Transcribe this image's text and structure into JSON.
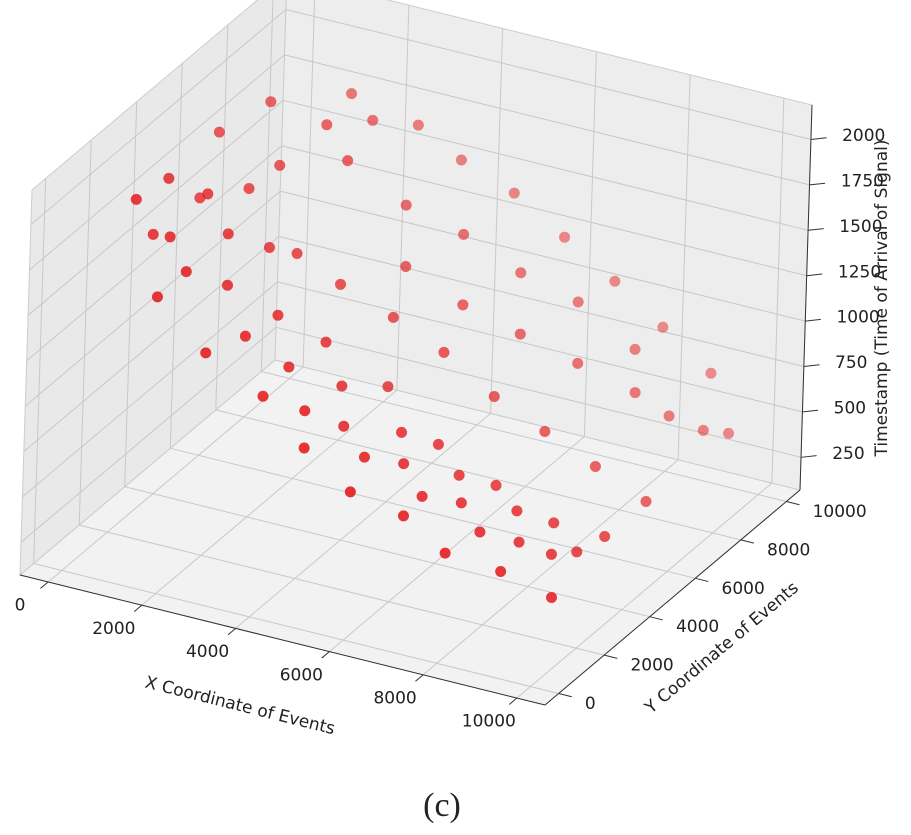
{
  "chart_data": {
    "type": "scatter3d",
    "xlabel": "X Coordinate of Events",
    "ylabel": "Y Coordinate of Events",
    "zlabel": "Timestamp (Time of Arrival of Signal)",
    "caption": "(c)",
    "color": "#e41a1c",
    "xlim": [
      -600,
      10600
    ],
    "ylim": [
      -600,
      10600
    ],
    "zlim": [
      70,
      2190
    ],
    "xticks": [
      0,
      2000,
      4000,
      6000,
      8000,
      10000
    ],
    "yticks": [
      0,
      2000,
      4000,
      6000,
      8000,
      10000
    ],
    "zticks": [
      250,
      500,
      750,
      1000,
      1250,
      1500,
      1750,
      2000
    ],
    "grid": true,
    "x": [
      300,
      600,
      900,
      1200,
      400,
      1500,
      1800,
      2100,
      800,
      2400,
      1000,
      2700,
      3000,
      1600,
      2000,
      2500,
      3200,
      3500,
      3800,
      4100,
      4400,
      4700,
      5000,
      5300,
      5600,
      5900,
      6200,
      6500,
      6800,
      7100,
      7400,
      7700,
      8000,
      8300,
      8600,
      8900,
      9200,
      9500,
      4000,
      4500,
      5000,
      5500,
      6000,
      6500,
      7000,
      7500,
      8000,
      8500,
      9000,
      9500,
      3000,
      3500,
      4200,
      5200,
      6200,
      7200,
      8200,
      9200,
      9800,
      2800,
      3600,
      4600,
      5600,
      6600,
      7600,
      8600,
      9600,
      2200,
      3300,
      4300,
      5400,
      6400,
      7400,
      8400,
      9400,
      1300,
      2300,
      700
    ],
    "y": [
      2200,
      3000,
      2500,
      3500,
      2800,
      2000,
      3200,
      2600,
      4000,
      3800,
      1800,
      2200,
      3000,
      4500,
      5000,
      6000,
      5500,
      2500,
      3500,
      2000,
      3000,
      2500,
      3800,
      2200,
      3200,
      2700,
      3600,
      2300,
      3300,
      2800,
      3700,
      2400,
      3400,
      2900,
      3800,
      3100,
      3600,
      4200,
      6500,
      5500,
      7000,
      6000,
      7500,
      6500,
      8000,
      7000,
      8500,
      7500,
      8000,
      8500,
      7000,
      8000,
      8500,
      8800,
      9000,
      9200,
      9300,
      9400,
      9000,
      4200,
      4500,
      4800,
      5000,
      5200,
      5400,
      5600,
      5800,
      1500,
      1800,
      1600,
      1400,
      1700,
      1500,
      1900,
      2100,
      6000,
      7500,
      5000
    ],
    "z": [
      1900,
      1950,
      1700,
      1850,
      1650,
      1600,
      1700,
      1500,
      1750,
      1600,
      1450,
      1300,
      1350,
      1800,
      1900,
      2050,
      1950,
      1150,
      1200,
      1000,
      1050,
      900,
      1000,
      800,
      850,
      750,
      780,
      650,
      680,
      600,
      620,
      520,
      550,
      450,
      480,
      400,
      380,
      420,
      1650,
      1450,
      1500,
      1250,
      1300,
      1100,
      1150,
      950,
      900,
      800,
      650,
      550,
      2000,
      1900,
      1700,
      1550,
      1350,
      1150,
      950,
      750,
      500,
      1550,
      1400,
      1250,
      1100,
      900,
      750,
      600,
      450,
      1250,
      1050,
      850,
      700,
      600,
      480,
      400,
      300,
      2100,
      2050,
      2000
    ]
  }
}
